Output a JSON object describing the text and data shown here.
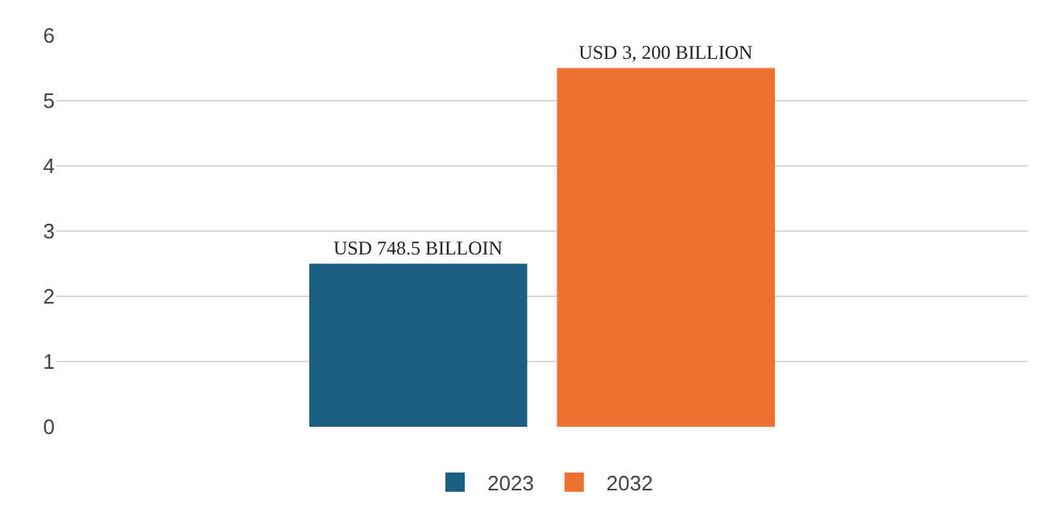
{
  "chart_data": {
    "type": "bar",
    "categories": [
      null
    ],
    "series": [
      {
        "name": "2023",
        "color": "#1a5f82",
        "values": [
          2.5
        ],
        "value_labels": [
          "USD 748.5 BILLOIN"
        ]
      },
      {
        "name": "2032",
        "color": "#ed7232",
        "values": [
          5.5
        ],
        "value_labels": [
          "USD 3, 200 BILLION"
        ]
      }
    ],
    "ylim": [
      0,
      6
    ],
    "yticks": [
      0,
      1,
      2,
      3,
      4,
      5,
      6
    ],
    "grid": "y",
    "legend": "bottom"
  }
}
